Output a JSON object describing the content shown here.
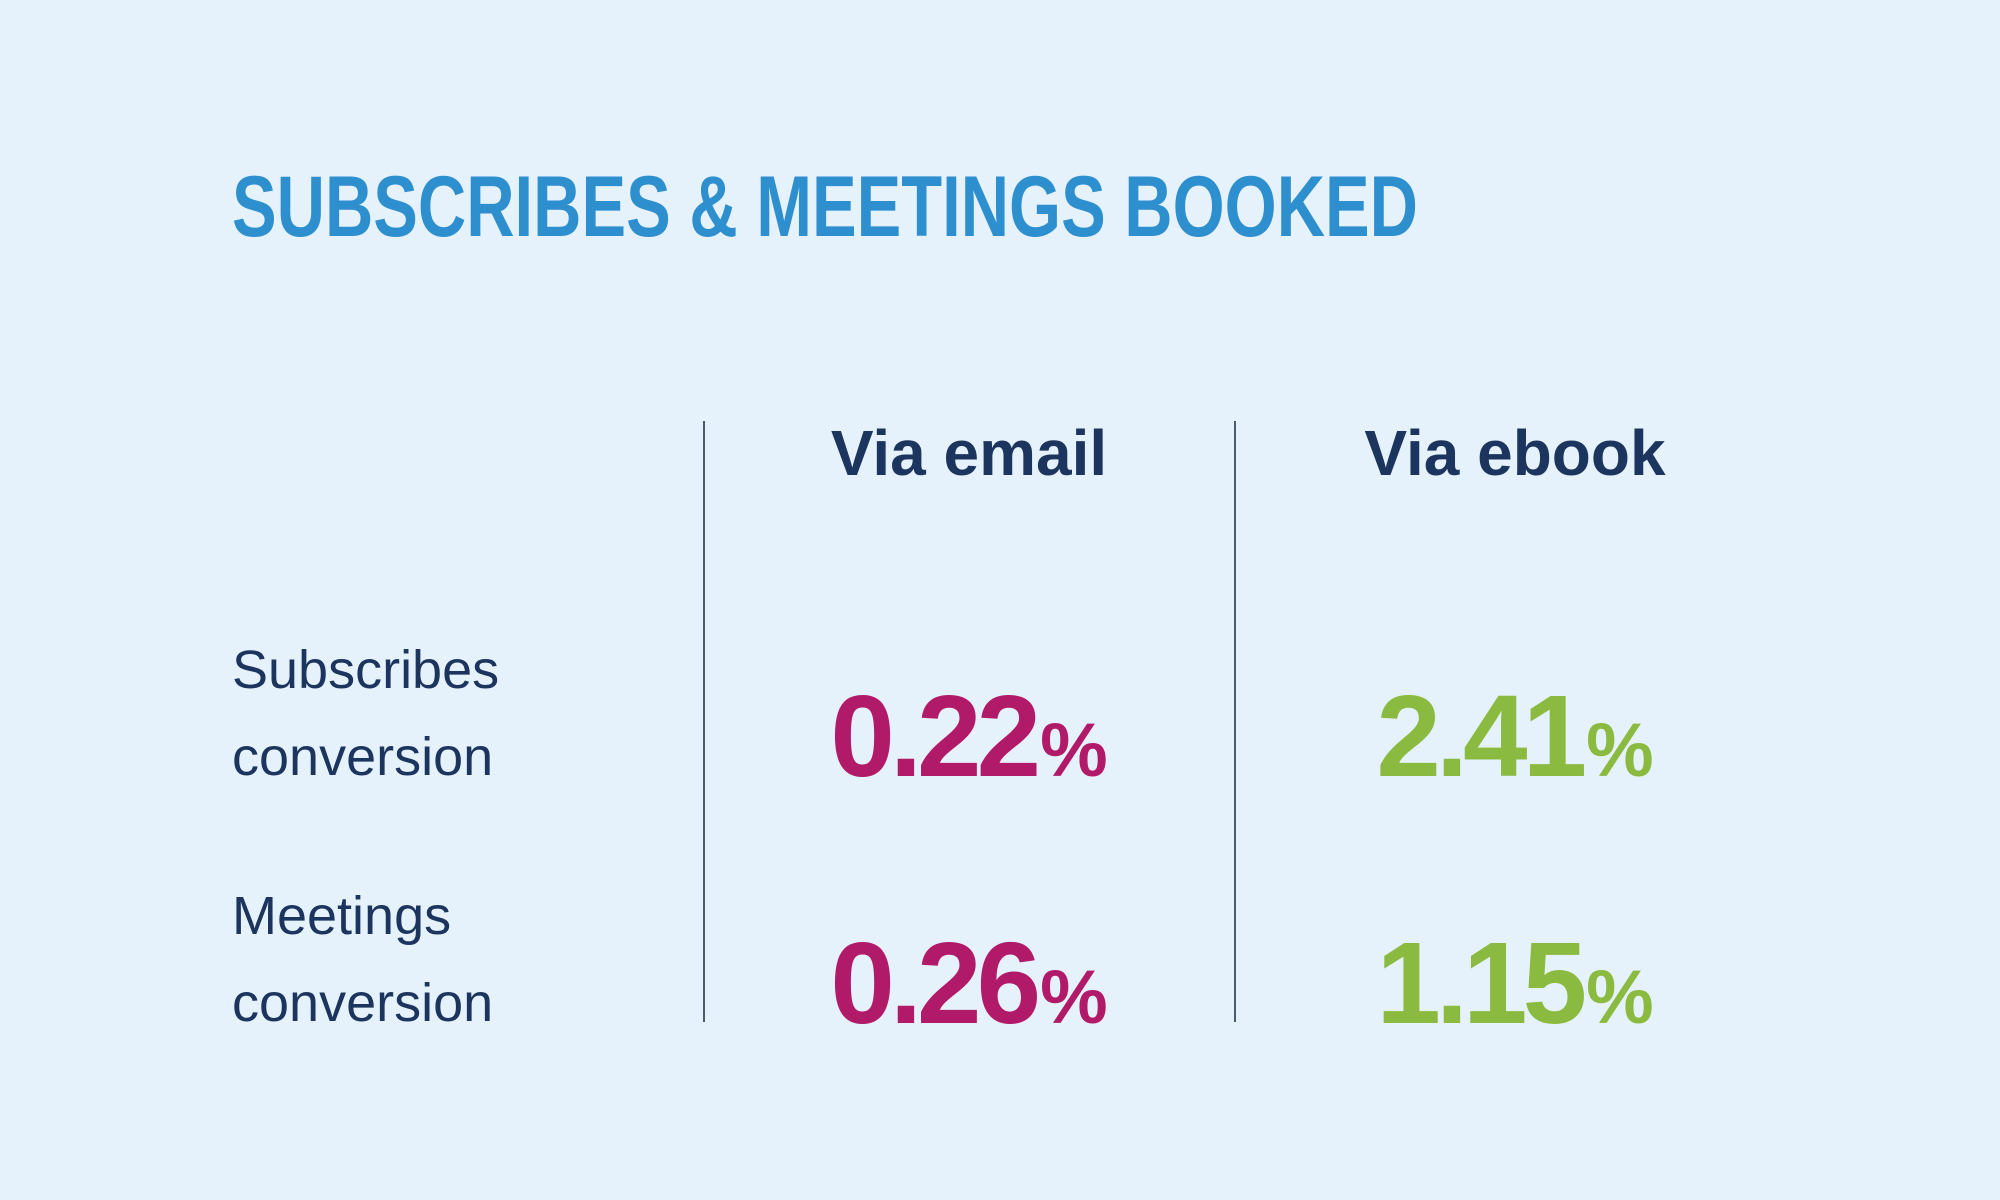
{
  "header": {
    "title": "SUBSCRIBES & MEETINGS BOOKED"
  },
  "table": {
    "columns": [
      "Via email",
      "Via ebook"
    ],
    "rows": [
      {
        "label": "Subscribes conversion",
        "cells": [
          {
            "value": 0.22,
            "unit": "%"
          },
          {
            "value": 2.41,
            "unit": "%"
          }
        ]
      },
      {
        "label": "Meetings conversion",
        "cells": [
          {
            "value": 0.26,
            "unit": "%"
          },
          {
            "value": 1.15,
            "unit": "%"
          }
        ]
      }
    ]
  }
}
